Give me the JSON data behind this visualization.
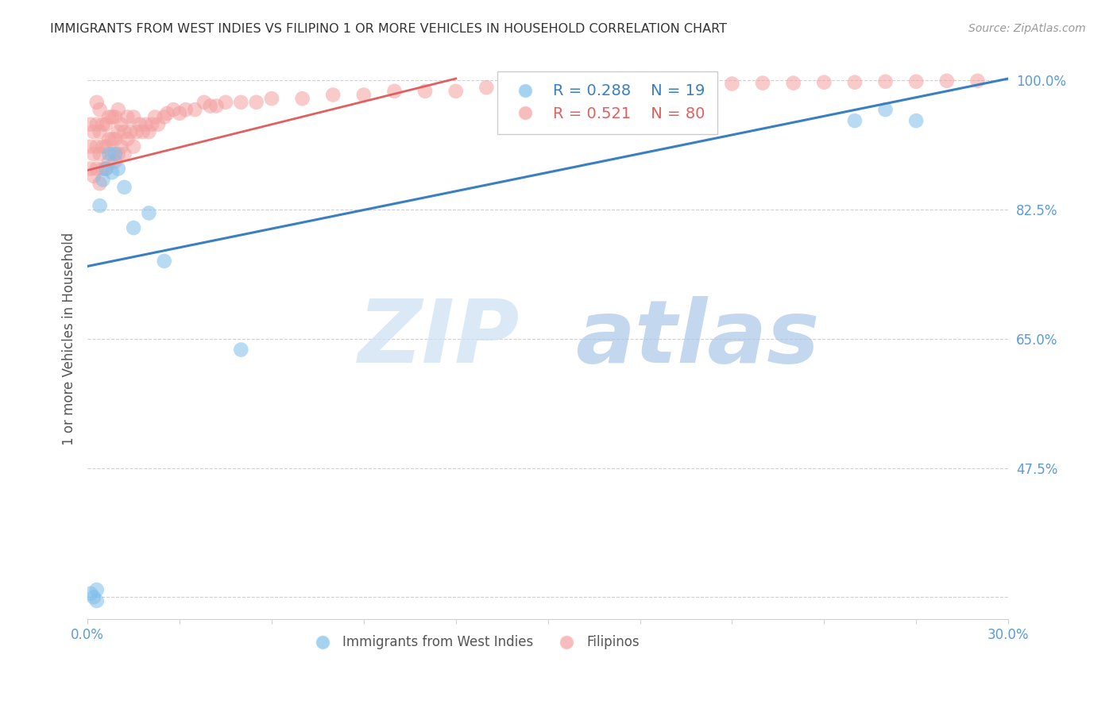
{
  "title": "IMMIGRANTS FROM WEST INDIES VS FILIPINO 1 OR MORE VEHICLES IN HOUSEHOLD CORRELATION CHART",
  "source": "Source: ZipAtlas.com",
  "ylabel": "1 or more Vehicles in Household",
  "xlim": [
    0.0,
    0.3
  ],
  "ylim": [
    0.27,
    1.03
  ],
  "xticks": [
    0.0,
    0.03,
    0.06,
    0.09,
    0.12,
    0.15,
    0.18,
    0.21,
    0.24,
    0.27,
    0.3
  ],
  "xticklabels": [
    "0.0%",
    "",
    "",
    "",
    "",
    "",
    "",
    "",
    "",
    "",
    "30.0%"
  ],
  "ytick_positions": [
    0.3,
    0.475,
    0.65,
    0.825,
    1.0
  ],
  "ytick_labels": [
    "",
    "47.5%",
    "65.0%",
    "82.5%",
    "100.0%"
  ],
  "watermark_zip": "ZIP",
  "watermark_atlas": "atlas",
  "legend_blue_r": "0.288",
  "legend_blue_n": "19",
  "legend_pink_r": "0.521",
  "legend_pink_n": "80",
  "legend_label_blue": "Immigrants from West Indies",
  "legend_label_pink": "Filipinos",
  "blue_color": "#7fbfea",
  "pink_color": "#f4a0a0",
  "blue_line_color": "#3a7fc1",
  "pink_line_color": "#e06060",
  "axis_color": "#5b9bd5",
  "grid_color": "#d0d0d0",
  "title_color": "#333333",
  "blue_scatter_x": [
    0.001,
    0.002,
    0.003,
    0.004,
    0.005,
    0.006,
    0.007,
    0.008,
    0.009,
    0.01,
    0.012,
    0.015,
    0.02,
    0.025,
    0.05,
    0.25,
    0.26,
    0.27,
    0.003
  ],
  "blue_scatter_y": [
    0.305,
    0.3,
    0.295,
    0.83,
    0.865,
    0.88,
    0.9,
    0.875,
    0.9,
    0.88,
    0.855,
    0.8,
    0.82,
    0.755,
    0.635,
    0.945,
    0.96,
    0.945,
    0.31
  ],
  "pink_scatter_x": [
    0.001,
    0.001,
    0.001,
    0.002,
    0.002,
    0.002,
    0.003,
    0.003,
    0.003,
    0.003,
    0.004,
    0.004,
    0.004,
    0.004,
    0.005,
    0.005,
    0.005,
    0.006,
    0.006,
    0.006,
    0.007,
    0.007,
    0.007,
    0.008,
    0.008,
    0.008,
    0.009,
    0.009,
    0.009,
    0.01,
    0.01,
    0.01,
    0.011,
    0.011,
    0.012,
    0.012,
    0.013,
    0.013,
    0.014,
    0.015,
    0.015,
    0.016,
    0.017,
    0.018,
    0.019,
    0.02,
    0.021,
    0.022,
    0.023,
    0.025,
    0.026,
    0.028,
    0.03,
    0.032,
    0.035,
    0.038,
    0.04,
    0.042,
    0.045,
    0.05,
    0.055,
    0.06,
    0.07,
    0.08,
    0.09,
    0.1,
    0.11,
    0.12,
    0.13,
    0.14,
    0.2,
    0.21,
    0.22,
    0.23,
    0.24,
    0.25,
    0.26,
    0.27,
    0.28,
    0.29
  ],
  "pink_scatter_y": [
    0.88,
    0.91,
    0.94,
    0.87,
    0.9,
    0.93,
    0.88,
    0.91,
    0.94,
    0.97,
    0.86,
    0.9,
    0.93,
    0.96,
    0.88,
    0.91,
    0.94,
    0.88,
    0.91,
    0.94,
    0.89,
    0.92,
    0.95,
    0.9,
    0.92,
    0.95,
    0.89,
    0.92,
    0.95,
    0.9,
    0.93,
    0.96,
    0.91,
    0.94,
    0.9,
    0.93,
    0.92,
    0.95,
    0.93,
    0.91,
    0.95,
    0.93,
    0.94,
    0.93,
    0.94,
    0.93,
    0.94,
    0.95,
    0.94,
    0.95,
    0.955,
    0.96,
    0.955,
    0.96,
    0.96,
    0.97,
    0.965,
    0.965,
    0.97,
    0.97,
    0.97,
    0.975,
    0.975,
    0.98,
    0.98,
    0.985,
    0.985,
    0.985,
    0.99,
    0.99,
    0.995,
    0.995,
    0.996,
    0.996,
    0.997,
    0.997,
    0.998,
    0.998,
    0.999,
    0.999
  ],
  "blue_line_x": [
    0.0,
    0.3
  ],
  "blue_line_y": [
    0.748,
    1.002
  ],
  "pink_line_x": [
    0.0,
    0.12
  ],
  "pink_line_y": [
    0.878,
    1.002
  ],
  "background_color": "#ffffff"
}
